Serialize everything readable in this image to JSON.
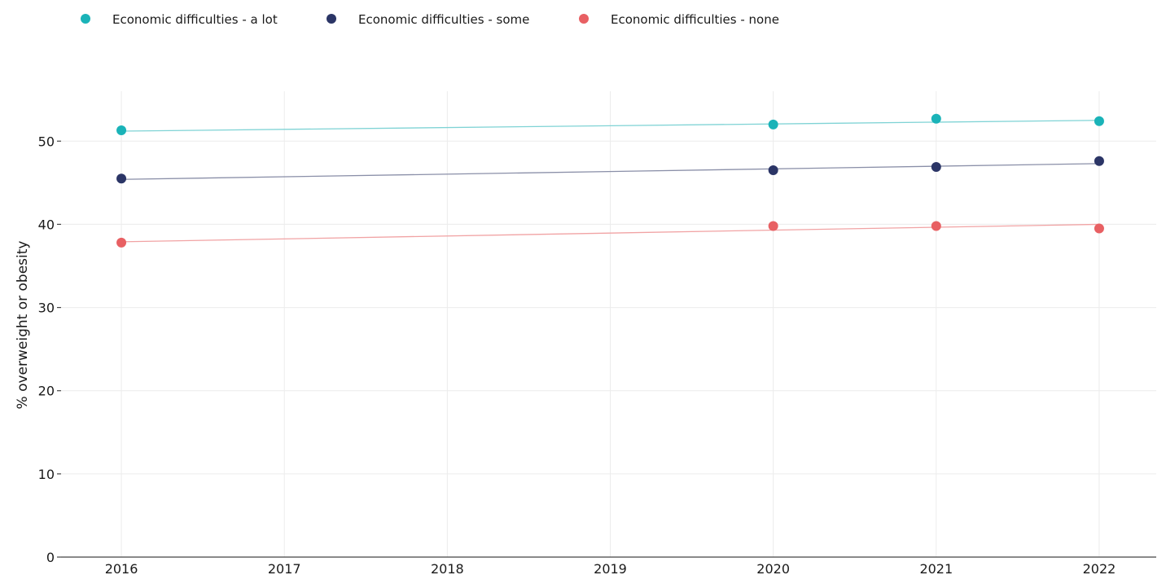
{
  "chart_data": {
    "type": "line",
    "title": "",
    "xlabel": "",
    "ylabel": "% overweight or obesity",
    "x_ticks": [
      2016,
      2017,
      2018,
      2019,
      2020,
      2021,
      2022
    ],
    "xlim": [
      2015.63,
      2022.35
    ],
    "y_ticks": [
      0,
      10,
      20,
      30,
      40,
      50
    ],
    "ylim": [
      0,
      56
    ],
    "grid": true,
    "legend_position": "top-left",
    "series": [
      {
        "name": "Economic difficulties - a lot",
        "color": "#1ab3b8",
        "line_color": "#7fd3d5",
        "points": [
          {
            "x": 2016,
            "y": 51.3
          },
          {
            "x": 2020,
            "y": 52.0
          },
          {
            "x": 2021,
            "y": 52.7
          },
          {
            "x": 2022,
            "y": 52.4
          }
        ],
        "trend": {
          "start": {
            "x": 2016,
            "y": 51.2
          },
          "end": {
            "x": 2022,
            "y": 52.5
          }
        }
      },
      {
        "name": "Economic difficulties - some",
        "color": "#2b3566",
        "line_color": "#8a8fa8",
        "points": [
          {
            "x": 2016,
            "y": 45.5
          },
          {
            "x": 2020,
            "y": 46.5
          },
          {
            "x": 2021,
            "y": 46.9
          },
          {
            "x": 2022,
            "y": 47.6
          }
        ],
        "trend": {
          "start": {
            "x": 2016,
            "y": 45.4
          },
          "end": {
            "x": 2022,
            "y": 47.3
          }
        }
      },
      {
        "name": "Economic difficulties - none",
        "color": "#e86063",
        "line_color": "#f1a3a4",
        "points": [
          {
            "x": 2016,
            "y": 37.8
          },
          {
            "x": 2020,
            "y": 39.8
          },
          {
            "x": 2021,
            "y": 39.8
          },
          {
            "x": 2022,
            "y": 39.5
          }
        ],
        "trend": {
          "start": {
            "x": 2016,
            "y": 37.9
          },
          "end": {
            "x": 2022,
            "y": 40.0
          }
        }
      }
    ]
  }
}
